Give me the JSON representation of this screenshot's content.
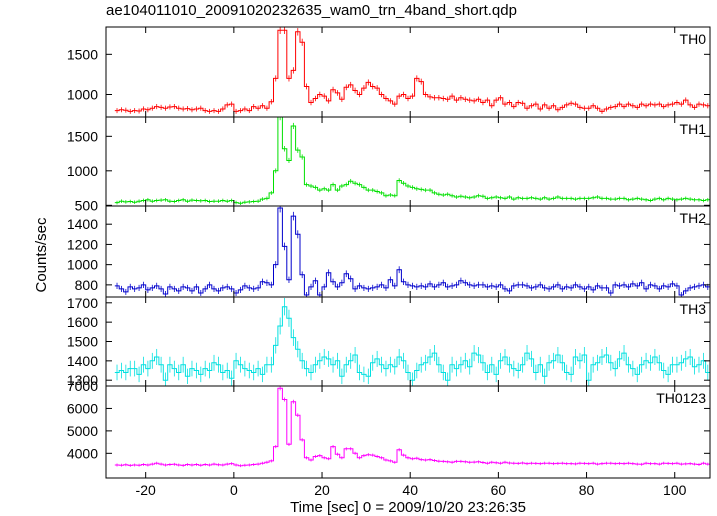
{
  "title": "ae104011010_20091020232635_wam0_trn_4band_short.qdp",
  "chart_data": {
    "type": "line",
    "style": "step histogram with error bars",
    "xlabel": "Time [sec] 0 = 2009/10/20 23:26:35",
    "ylabel": "Counts/sec",
    "xlim": [
      -29,
      108
    ],
    "xticks": [
      -20,
      0,
      20,
      40,
      60,
      80,
      100
    ],
    "x_start": -26.5,
    "bin_width": 1,
    "panels": [
      {
        "name": "TH0",
        "color": "#ff0000",
        "ylim": [
          720,
          1840
        ],
        "yticks": [
          1000,
          1500
        ],
        "values": [
          800,
          810,
          805,
          790,
          800,
          795,
          820,
          810,
          830,
          850,
          840,
          830,
          845,
          850,
          830,
          820,
          825,
          810,
          820,
          830,
          800,
          790,
          800,
          790,
          820,
          870,
          880,
          790,
          800,
          820,
          800,
          850,
          830,
          860,
          830,
          910,
          1200,
          1800,
          1800,
          1200,
          1300,
          1780,
          1650,
          1100,
          900,
          950,
          1000,
          980,
          920,
          1060,
          1020,
          940,
          1090,
          1120,
          1050,
          1000,
          1080,
          1150,
          1100,
          1080,
          1000,
          950,
          920,
          880,
          980,
          1000,
          950,
          980,
          1200,
          1160,
          1000,
          970,
          960,
          960,
          950,
          940,
          980,
          930,
          960,
          940,
          930,
          920,
          940,
          900,
          930,
          860,
          930,
          960,
          880,
          900,
          850,
          900,
          890,
          830,
          860,
          880,
          820,
          870,
          830,
          860,
          810,
          840,
          870,
          890,
          880,
          840,
          830,
          830,
          860,
          830,
          790,
          820,
          840,
          850,
          880,
          850,
          880,
          860,
          840,
          880,
          860,
          880,
          870,
          880,
          850,
          870,
          880,
          900,
          880,
          930,
          870,
          840,
          880,
          870,
          860,
          870,
          850,
          880,
          860,
          840,
          820,
          830
        ],
        "label": "TH0"
      },
      {
        "name": "TH1",
        "color": "#00e000",
        "ylim": [
          490,
          1780
        ],
        "yticks": [
          500,
          1000,
          1500
        ],
        "values": [
          540,
          560,
          550,
          555,
          545,
          560,
          570,
          580,
          560,
          570,
          575,
          580,
          560,
          555,
          570,
          580,
          560,
          575,
          570,
          565,
          570,
          555,
          560,
          560,
          570,
          560,
          570,
          540,
          530,
          545,
          550,
          555,
          560,
          590,
          600,
          680,
          1000,
          1780,
          1320,
          1150,
          1650,
          1300,
          1200,
          800,
          780,
          760,
          720,
          740,
          720,
          800,
          720,
          780,
          800,
          850,
          820,
          800,
          760,
          720,
          720,
          700,
          680,
          640,
          650,
          640,
          860,
          820,
          780,
          760,
          740,
          730,
          720,
          720,
          680,
          660,
          650,
          660,
          640,
          620,
          630,
          620,
          610,
          620,
          640,
          630,
          600,
          610,
          620,
          610,
          600,
          620,
          590,
          610,
          600,
          600,
          610,
          600,
          590,
          610,
          590,
          600,
          620,
          600,
          600,
          600,
          590,
          600,
          600,
          600,
          610,
          620,
          600,
          600,
          590,
          590,
          600,
          600,
          580,
          590,
          600,
          590,
          580,
          570,
          590,
          600,
          580,
          600,
          590,
          580,
          590,
          600,
          590,
          580,
          580,
          570,
          580,
          560,
          570
        ],
        "label": "TH1"
      },
      {
        "name": "TH2",
        "color": "#0000cc",
        "ylim": [
          680,
          1580
        ],
        "yticks": [
          800,
          1000,
          1200,
          1400
        ],
        "values": [
          790,
          760,
          730,
          780,
          760,
          770,
          800,
          750,
          770,
          790,
          760,
          710,
          780,
          760,
          740,
          780,
          770,
          740,
          780,
          720,
          760,
          800,
          760,
          740,
          770,
          780,
          760,
          720,
          750,
          790,
          770,
          760,
          770,
          830,
          820,
          800,
          1000,
          1560,
          1180,
          850,
          1480,
          1300,
          900,
          700,
          780,
          840,
          700,
          780,
          920,
          830,
          780,
          820,
          910,
          860,
          760,
          790,
          770,
          760,
          770,
          780,
          800,
          770,
          850,
          790,
          950,
          830,
          800,
          790,
          780,
          790,
          780,
          810,
          780,
          800,
          820,
          780,
          790,
          800,
          840,
          820,
          800,
          790,
          800,
          800,
          780,
          790,
          780,
          800,
          760,
          740,
          790,
          800,
          800,
          790,
          770,
          780,
          800,
          770,
          760,
          780,
          800,
          760,
          780,
          770,
          800,
          780,
          760,
          780,
          750,
          790,
          770,
          770,
          720,
          800,
          790,
          800,
          780,
          810,
          790,
          820,
          760,
          800,
          790,
          760,
          790,
          780,
          810,
          790,
          700,
          740,
          770,
          780,
          790,
          800,
          780,
          790,
          740,
          810,
          780
        ],
        "label": "TH2"
      },
      {
        "name": "TH3",
        "color": "#00e0e0",
        "ylim": [
          1270,
          1730
        ],
        "yticks": [
          1300,
          1400,
          1500,
          1600,
          1700
        ],
        "values": [
          1340,
          1350,
          1340,
          1360,
          1360,
          1330,
          1380,
          1360,
          1400,
          1420,
          1380,
          1300,
          1380,
          1360,
          1340,
          1380,
          1320,
          1360,
          1350,
          1330,
          1360,
          1350,
          1390,
          1380,
          1340,
          1350,
          1310,
          1400,
          1380,
          1360,
          1350,
          1340,
          1360,
          1330,
          1380,
          1380,
          1480,
          1580,
          1680,
          1620,
          1520,
          1460,
          1400,
          1360,
          1340,
          1380,
          1400,
          1420,
          1410,
          1380,
          1400,
          1320,
          1380,
          1400,
          1430,
          1340,
          1330,
          1320,
          1390,
          1410,
          1380,
          1360,
          1380,
          1370,
          1420,
          1400,
          1340,
          1300,
          1350,
          1380,
          1390,
          1420,
          1440,
          1380,
          1340,
          1300,
          1380,
          1360,
          1380,
          1400,
          1370,
          1440,
          1430,
          1390,
          1340,
          1380,
          1330,
          1400,
          1420,
          1380,
          1360,
          1350,
          1380,
          1440,
          1410,
          1340,
          1380,
          1320,
          1390,
          1400,
          1430,
          1390,
          1340,
          1330,
          1420,
          1400,
          1430,
          1300,
          1380,
          1390,
          1420,
          1430,
          1390,
          1360,
          1410,
          1440,
          1380,
          1360,
          1330,
          1380,
          1400,
          1390,
          1420,
          1390,
          1350,
          1330,
          1380,
          1380,
          1390,
          1410,
          1420,
          1370,
          1380,
          1400,
          1340,
          1390
        ],
        "label": "TH3"
      },
      {
        "name": "TH0123",
        "color": "#ff00ff",
        "ylim": [
          2900,
          7000
        ],
        "yticks": [
          4000,
          5000,
          6000,
          7000
        ],
        "values": [
          3480,
          3470,
          3490,
          3460,
          3480,
          3470,
          3500,
          3480,
          3520,
          3560,
          3520,
          3480,
          3500,
          3510,
          3480,
          3460,
          3500,
          3480,
          3500,
          3470,
          3500,
          3480,
          3520,
          3490,
          3480,
          3520,
          3540,
          3480,
          3450,
          3470,
          3480,
          3500,
          3520,
          3560,
          3600,
          3660,
          4300,
          6900,
          6400,
          4400,
          6300,
          5700,
          4600,
          3800,
          3700,
          3860,
          3900,
          3800,
          3760,
          4300,
          3960,
          3800,
          4200,
          4200,
          4000,
          3800,
          3900,
          3940,
          3920,
          3860,
          3800,
          3700,
          3660,
          3600,
          4160,
          3920,
          3800,
          3760,
          3780,
          3720,
          3700,
          3720,
          3680,
          3650,
          3640,
          3620,
          3600,
          3640,
          3640,
          3620,
          3600,
          3610,
          3620,
          3590,
          3560,
          3600,
          3580,
          3560,
          3600,
          3570,
          3560,
          3550,
          3570,
          3540,
          3560,
          3550,
          3540,
          3560,
          3560,
          3540,
          3550,
          3560,
          3540,
          3540,
          3530,
          3560,
          3550,
          3540,
          3560,
          3520,
          3540,
          3560,
          3560,
          3540,
          3550,
          3540,
          3560,
          3540,
          3520,
          3510,
          3560,
          3540,
          3540,
          3520,
          3560,
          3550,
          3540,
          3560,
          3520,
          3530,
          3540,
          3520,
          3500,
          3560,
          3520,
          3500
        ],
        "label": "TH0123"
      }
    ]
  }
}
